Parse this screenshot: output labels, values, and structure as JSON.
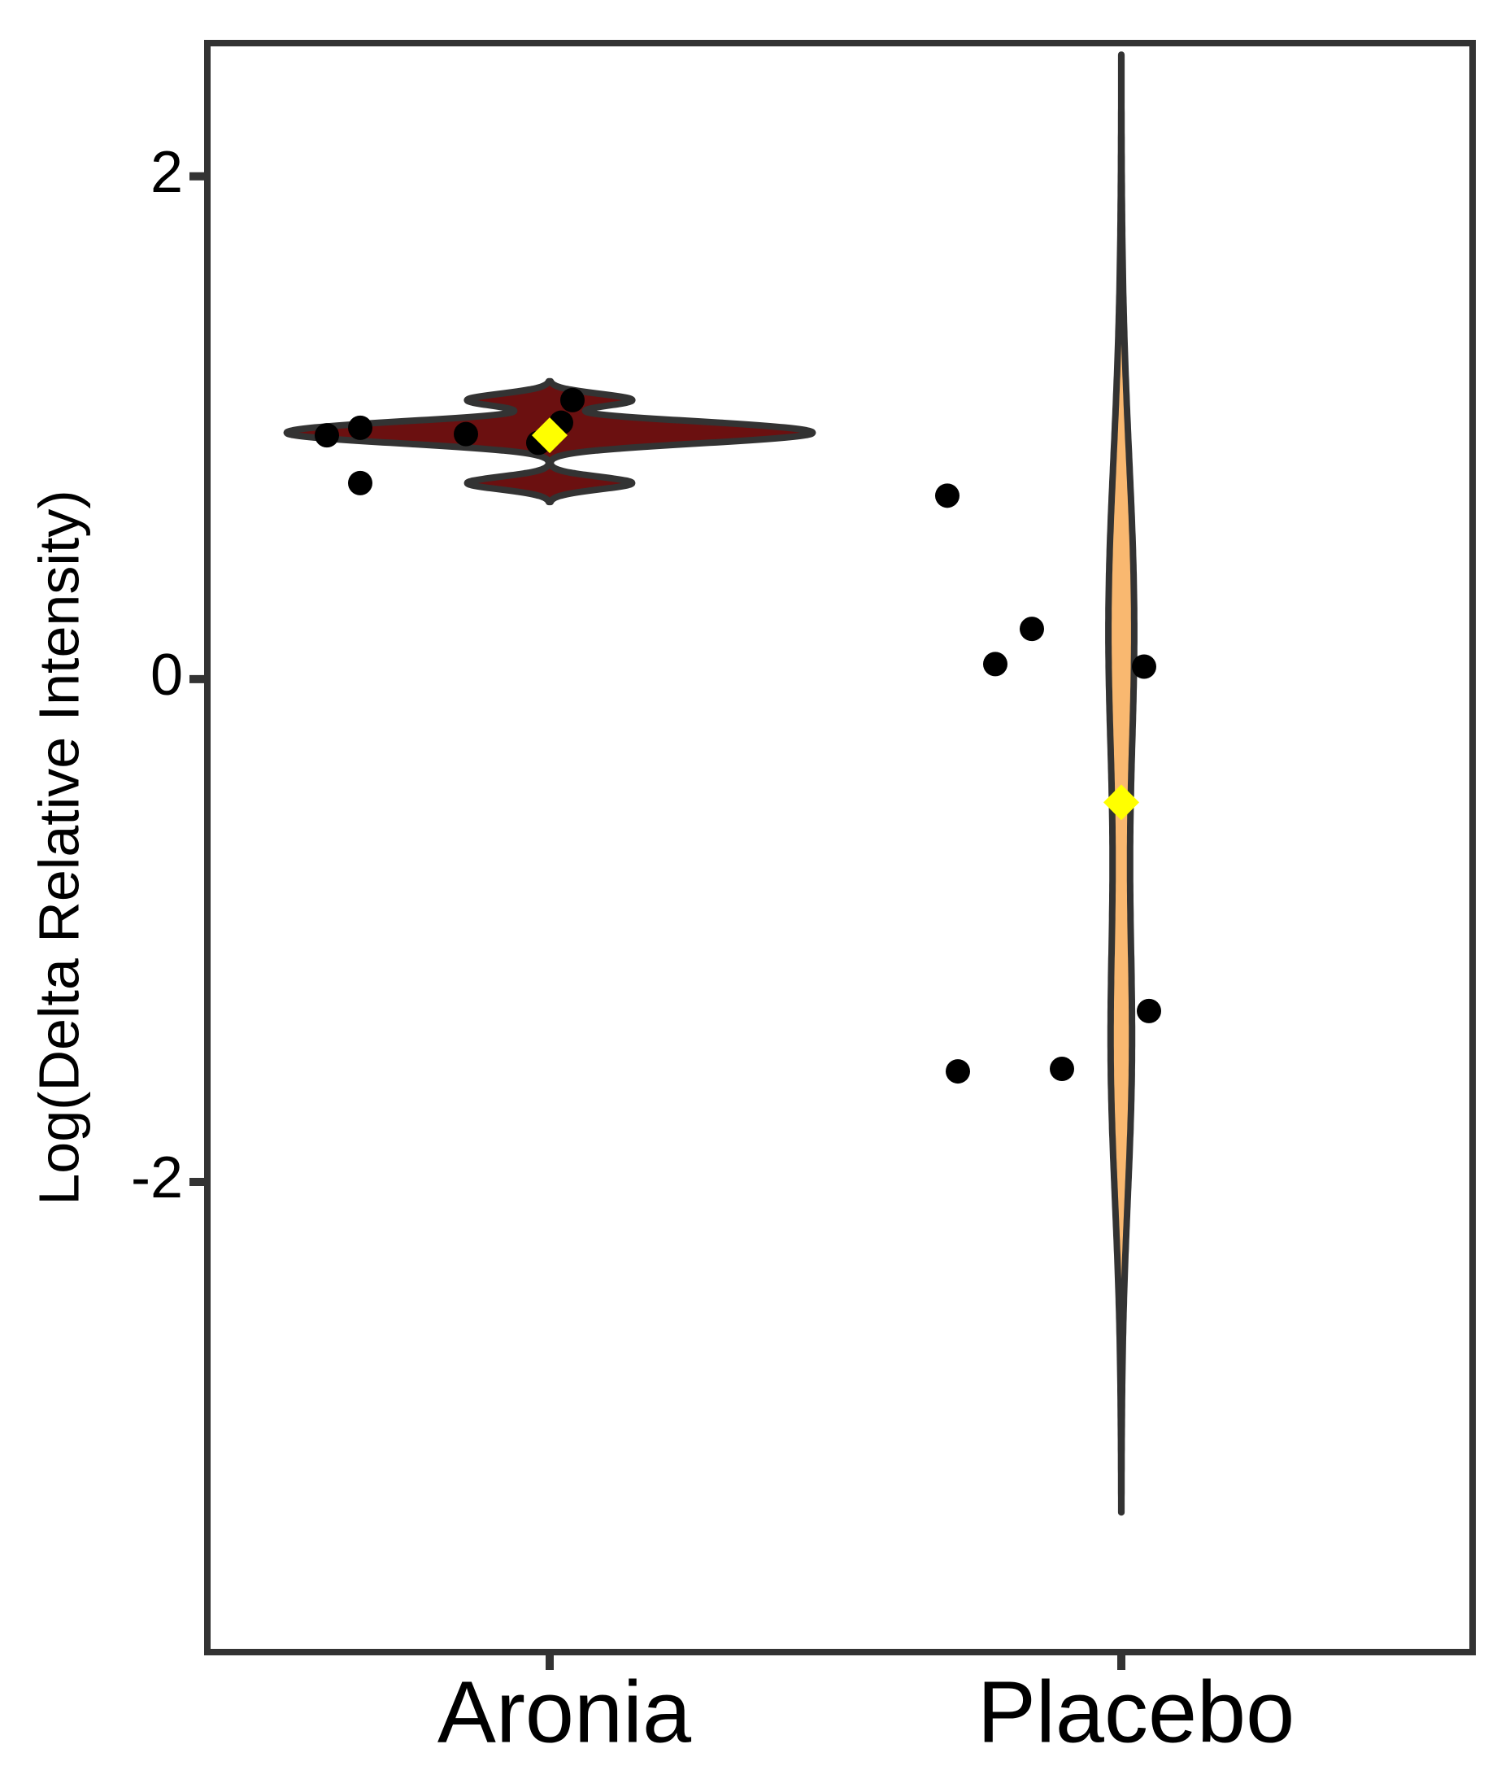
{
  "chart_data": {
    "type": "violin",
    "y_label": "Log(Delta Relative Intensity)",
    "categories": [
      "Aronia",
      "Placebo"
    ],
    "values": [
      [
        0.97,
        1.0,
        0.78,
        0.975,
        1.11,
        1.02,
        0.94
      ],
      [
        0.73,
        0.2,
        0.06,
        0.05,
        -1.32,
        -1.56,
        -1.55
      ]
    ],
    "means": [
      0.97,
      -0.49
    ],
    "colors": [
      "#6b1010",
      "#f9b870"
    ],
    "mean_color": "#ffff00",
    "point_color": "#000000",
    "outline_color": "#333333",
    "ylim": [
      -3.87,
      2.53
    ],
    "yticks": [
      -2,
      0,
      2
    ],
    "grid": false
  }
}
